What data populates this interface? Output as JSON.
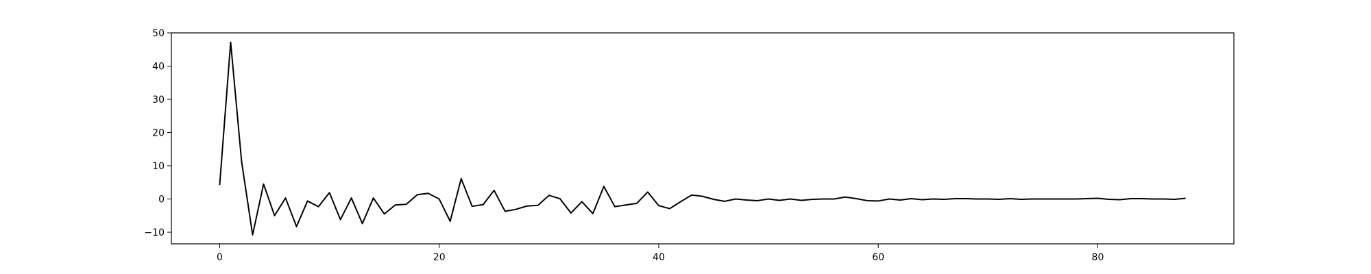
{
  "chart_data": {
    "type": "line",
    "title": "",
    "xlabel": "",
    "ylabel": "",
    "xlim": [
      -4.4,
      92.4
    ],
    "ylim": [
      -13.5,
      50
    ],
    "x_ticks": [
      0,
      20,
      40,
      60,
      80
    ],
    "y_ticks": [
      -10,
      0,
      10,
      20,
      30,
      40,
      50
    ],
    "x_tick_labels": [
      "0",
      "20",
      "40",
      "60",
      "80"
    ],
    "y_tick_labels": [
      "−10",
      "0",
      "10",
      "20",
      "30",
      "40",
      "50"
    ],
    "grid": false,
    "legend": "none",
    "series": [
      {
        "color": "#000000",
        "x": [
          0,
          1,
          2,
          3,
          4,
          5,
          6,
          7,
          8,
          9,
          10,
          11,
          12,
          13,
          14,
          15,
          16,
          17,
          18,
          19,
          20,
          21,
          22,
          23,
          24,
          25,
          26,
          27,
          28,
          29,
          30,
          31,
          32,
          33,
          34,
          35,
          36,
          37,
          38,
          39,
          40,
          41,
          42,
          43,
          44,
          45,
          46,
          47,
          48,
          49,
          50,
          51,
          52,
          53,
          54,
          55,
          56,
          57,
          58,
          59,
          60,
          61,
          62,
          63,
          64,
          65,
          66,
          67,
          68,
          69,
          70,
          71,
          72,
          73,
          74,
          75,
          76,
          77,
          78,
          79,
          80,
          81,
          82,
          83,
          84,
          85,
          86,
          87,
          88
        ],
        "values": [
          4.2,
          47.2,
          11.2,
          -10.8,
          4.5,
          -5,
          0.3,
          -8.3,
          -0.6,
          -2.3,
          1.9,
          -6.2,
          0.3,
          -7.4,
          0.3,
          -4.5,
          -1.8,
          -1.6,
          1.3,
          1.7,
          0,
          -6.7,
          6.1,
          -2.2,
          -1.7,
          2.6,
          -3.7,
          -3.1,
          -2.1,
          -1.9,
          1.1,
          0.1,
          -4.2,
          -0.8,
          -4.4,
          3.8,
          -2.3,
          -1.8,
          -1.3,
          2.1,
          -2,
          -2.9,
          -0.8,
          1.2,
          0.8,
          -0.1,
          -0.7,
          0,
          -0.3,
          -0.5,
          0,
          -0.4,
          0,
          -0.4,
          -0.1,
          0,
          0,
          0.6,
          0.1,
          -0.5,
          -0.6,
          0,
          -0.3,
          0.1,
          -0.2,
          0,
          -0.1,
          0.1,
          0.1,
          0,
          0,
          -0.1,
          0.1,
          -0.1,
          0,
          0,
          0,
          0,
          0,
          0.1,
          0.2,
          -0.1,
          -0.2,
          0.1,
          0.1,
          0,
          0,
          -0.1,
          0.2
        ]
      }
    ]
  }
}
